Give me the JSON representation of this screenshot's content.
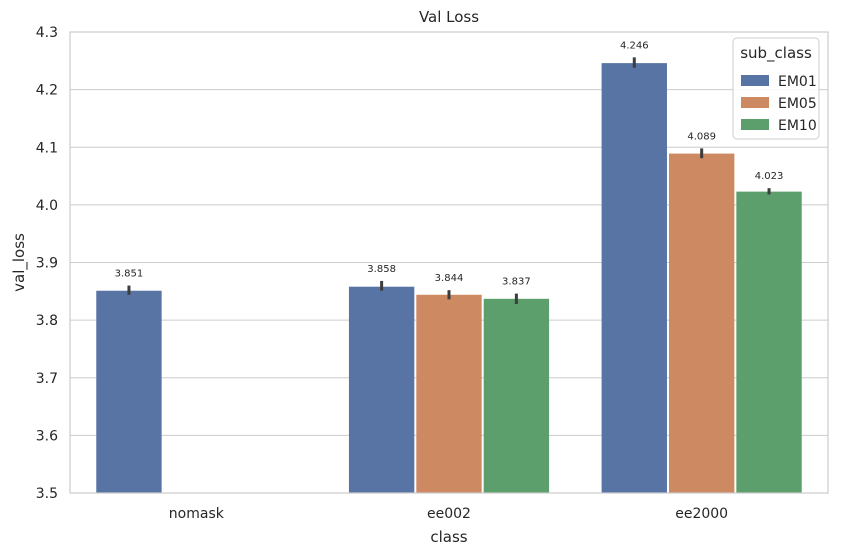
{
  "chart_data": {
    "type": "bar",
    "title": "Val Loss",
    "xlabel": "class",
    "ylabel": "val_loss",
    "ylim": [
      3.5,
      4.3
    ],
    "yticks": [
      "3.5",
      "3.6",
      "3.7",
      "3.8",
      "3.9",
      "4.0",
      "4.1",
      "4.2",
      "4.3"
    ],
    "grid": true,
    "categories": [
      "nomask",
      "ee002",
      "ee2000"
    ],
    "legend": {
      "title": "sub_class",
      "placement": "top-right"
    },
    "series": [
      {
        "name": "EM01",
        "color": "#5874a4",
        "values": [
          3.851,
          3.858,
          4.246
        ],
        "labels": [
          "3.851",
          "3.858",
          "4.246"
        ],
        "error_low": [
          3.844,
          3.851,
          4.238
        ],
        "error_high": [
          3.86,
          3.868,
          4.256
        ]
      },
      {
        "name": "EM05",
        "color": "#cd8962",
        "values": [
          null,
          3.844,
          4.089
        ],
        "labels": [
          null,
          "3.844",
          "4.089"
        ],
        "error_low": [
          null,
          3.836,
          4.081
        ],
        "error_high": [
          null,
          3.852,
          4.098
        ]
      },
      {
        "name": "EM10",
        "color": "#5d9e6d",
        "values": [
          null,
          3.837,
          4.023
        ],
        "labels": [
          null,
          "3.837",
          "4.023"
        ],
        "error_low": [
          null,
          3.828,
          4.018
        ],
        "error_high": [
          null,
          3.846,
          4.029
        ]
      }
    ]
  }
}
